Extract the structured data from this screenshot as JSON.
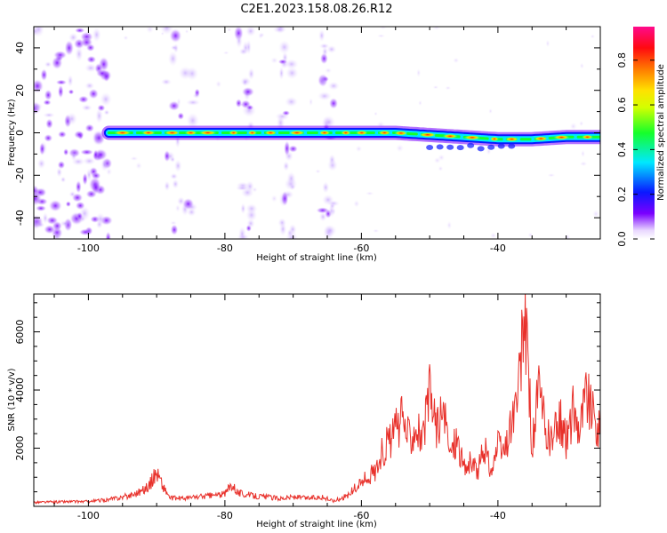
{
  "figure_title": "C2E1.2023.158.08.26.R12",
  "chart_data": [
    {
      "type": "heatmap",
      "xlabel": "Height of straight line (km)",
      "ylabel": "Frequency (Hz)",
      "xlim": [
        -108,
        -25
      ],
      "ylim": [
        -50,
        50
      ],
      "xticks": [
        -100,
        -80,
        -60,
        -40
      ],
      "yticks": [
        -40,
        -20,
        0,
        20,
        40
      ],
      "colorbar": {
        "label": "Normalized spectral amplitude",
        "range": [
          0,
          0.95
        ],
        "ticks": [
          0.0,
          0.2,
          0.4,
          0.6,
          0.8
        ]
      },
      "ridge": {
        "frequency_hz": [
          0,
          0,
          0,
          0,
          0,
          0,
          -1,
          -2,
          -3,
          -3,
          -2,
          -2
        ],
        "x_km": [
          -97,
          -90,
          -80,
          -70,
          -60,
          -55,
          -50,
          -45,
          -40,
          -35,
          -30,
          -25
        ]
      },
      "noise_bands_km": [
        [
          -108,
          -97
        ],
        [
          -89,
          -84
        ],
        [
          -78,
          -76
        ],
        [
          -72,
          -70
        ],
        [
          -66,
          -64
        ]
      ]
    },
    {
      "type": "line",
      "xlabel": "Height of straight line (km)",
      "ylabel": "SNR (10 * v/v)",
      "xlim": [
        -108,
        -25
      ],
      "ylim": [
        0,
        7300
      ],
      "xticks": [
        -100,
        -80,
        -60,
        -40
      ],
      "yticks": [
        2000,
        4000,
        6000
      ],
      "series": [
        {
          "color": "#e8302a",
          "x": [
            -108,
            -104,
            -100,
            -97,
            -94,
            -92,
            -91,
            -90,
            -89,
            -88,
            -86,
            -84,
            -82,
            -80,
            -79,
            -78,
            -76,
            -74,
            -72,
            -70,
            -68,
            -66,
            -64,
            -62,
            -60,
            -58,
            -57,
            -56,
            -55,
            -54,
            -53,
            -52,
            -51,
            -50,
            -49,
            -48,
            -47,
            -46,
            -45,
            -44,
            -43,
            -42,
            -41,
            -40,
            -39,
            -38,
            -37,
            -36,
            -35,
            -34,
            -33,
            -32,
            -31,
            -30,
            -29,
            -28,
            -27,
            -26,
            -25
          ],
          "y": [
            150,
            170,
            180,
            250,
            400,
            600,
            800,
            1300,
            700,
            300,
            300,
            350,
            400,
            450,
            850,
            500,
            400,
            350,
            300,
            350,
            300,
            350,
            200,
            400,
            900,
            1300,
            2000,
            2400,
            2800,
            3200,
            2600,
            3100,
            2400,
            4200,
            3000,
            3400,
            2000,
            2600,
            1400,
            1600,
            1300,
            2200,
            1300,
            2200,
            2000,
            3100,
            4100,
            7300,
            2200,
            4300,
            2700,
            2400,
            3300,
            2400,
            3600,
            3000,
            4300,
            3200,
            2800
          ]
        }
      ]
    }
  ]
}
